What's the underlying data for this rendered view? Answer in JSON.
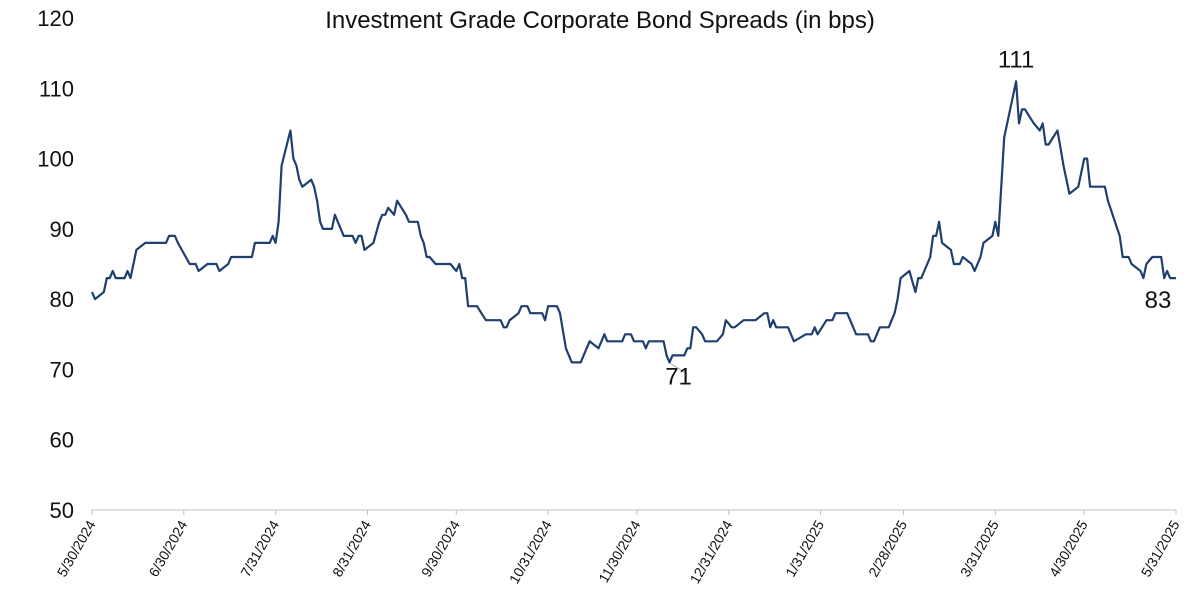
{
  "chart_data": {
    "type": "line",
    "title": "Investment Grade Corporate Bond Spreads (in bps)",
    "xlabel": "",
    "ylabel": "",
    "ylim": [
      50,
      120
    ],
    "yticks": [
      50,
      60,
      70,
      80,
      90,
      100,
      110,
      120
    ],
    "xlim": [
      "2024-05-30",
      "2025-05-31"
    ],
    "xtick_labels": [
      "5/30/2024",
      "6/30/2024",
      "7/31/2024",
      "8/31/2024",
      "9/30/2024",
      "10/31/2024",
      "11/30/2024",
      "12/31/2024",
      "1/31/2025",
      "2/28/2025",
      "3/31/2025",
      "4/30/2025",
      "5/31/2025"
    ],
    "xtick_dates": [
      "2024-05-30",
      "2024-06-30",
      "2024-07-31",
      "2024-08-31",
      "2024-09-30",
      "2024-10-31",
      "2024-11-30",
      "2024-12-31",
      "2025-01-31",
      "2025-02-28",
      "2025-03-31",
      "2025-04-30",
      "2025-05-31"
    ],
    "grid": false,
    "legend": "none",
    "line_color": "#1f3f6e",
    "series": [
      {
        "points": [
          [
            "2024-05-30",
            81
          ],
          [
            "2024-05-31",
            80
          ],
          [
            "2024-06-03",
            81
          ],
          [
            "2024-06-04",
            83
          ],
          [
            "2024-06-05",
            83
          ],
          [
            "2024-06-06",
            84
          ],
          [
            "2024-06-07",
            83
          ],
          [
            "2024-06-10",
            83
          ],
          [
            "2024-06-11",
            84
          ],
          [
            "2024-06-12",
            83
          ],
          [
            "2024-06-14",
            87
          ],
          [
            "2024-06-17",
            88
          ],
          [
            "2024-06-24",
            88
          ],
          [
            "2024-06-25",
            89
          ],
          [
            "2024-06-27",
            89
          ],
          [
            "2024-06-28",
            88
          ],
          [
            "2024-07-02",
            85
          ],
          [
            "2024-07-04",
            85
          ],
          [
            "2024-07-05",
            84
          ],
          [
            "2024-07-08",
            85
          ],
          [
            "2024-07-11",
            85
          ],
          [
            "2024-07-12",
            84
          ],
          [
            "2024-07-15",
            85
          ],
          [
            "2024-07-16",
            86
          ],
          [
            "2024-07-23",
            86
          ],
          [
            "2024-07-24",
            88
          ],
          [
            "2024-07-29",
            88
          ],
          [
            "2024-07-30",
            89
          ],
          [
            "2024-07-31",
            88
          ],
          [
            "2024-08-01",
            91
          ],
          [
            "2024-08-02",
            99
          ],
          [
            "2024-08-05",
            104
          ],
          [
            "2024-08-06",
            100
          ],
          [
            "2024-08-07",
            99
          ],
          [
            "2024-08-08",
            97
          ],
          [
            "2024-08-09",
            96
          ],
          [
            "2024-08-12",
            97
          ],
          [
            "2024-08-13",
            96
          ],
          [
            "2024-08-14",
            94
          ],
          [
            "2024-08-15",
            91
          ],
          [
            "2024-08-16",
            90
          ],
          [
            "2024-08-19",
            90
          ],
          [
            "2024-08-20",
            92
          ],
          [
            "2024-08-23",
            89
          ],
          [
            "2024-08-26",
            89
          ],
          [
            "2024-08-27",
            88
          ],
          [
            "2024-08-28",
            89
          ],
          [
            "2024-08-29",
            89
          ],
          [
            "2024-08-30",
            87
          ],
          [
            "2024-09-02",
            88
          ],
          [
            "2024-09-04",
            91
          ],
          [
            "2024-09-05",
            92
          ],
          [
            "2024-09-06",
            92
          ],
          [
            "2024-09-07",
            93
          ],
          [
            "2024-09-09",
            92
          ],
          [
            "2024-09-10",
            94
          ],
          [
            "2024-09-13",
            92
          ],
          [
            "2024-09-14",
            91
          ],
          [
            "2024-09-17",
            91
          ],
          [
            "2024-09-18",
            89
          ],
          [
            "2024-09-19",
            88
          ],
          [
            "2024-09-20",
            86
          ],
          [
            "2024-09-21",
            86
          ],
          [
            "2024-09-23",
            85
          ],
          [
            "2024-09-28",
            85
          ],
          [
            "2024-09-30",
            84
          ],
          [
            "2024-10-01",
            85
          ],
          [
            "2024-10-02",
            83
          ],
          [
            "2024-10-03",
            83
          ],
          [
            "2024-10-04",
            79
          ],
          [
            "2024-10-07",
            79
          ],
          [
            "2024-10-10",
            77
          ],
          [
            "2024-10-15",
            77
          ],
          [
            "2024-10-16",
            76
          ],
          [
            "2024-10-17",
            76
          ],
          [
            "2024-10-18",
            77
          ],
          [
            "2024-10-21",
            78
          ],
          [
            "2024-10-22",
            79
          ],
          [
            "2024-10-24",
            79
          ],
          [
            "2024-10-25",
            78
          ],
          [
            "2024-10-29",
            78
          ],
          [
            "2024-10-30",
            77
          ],
          [
            "2024-10-31",
            79
          ],
          [
            "2024-11-03",
            79
          ],
          [
            "2024-11-04",
            78
          ],
          [
            "2024-11-06",
            73
          ],
          [
            "2024-11-08",
            71
          ],
          [
            "2024-11-11",
            71
          ],
          [
            "2024-11-14",
            74
          ],
          [
            "2024-11-17",
            73
          ],
          [
            "2024-11-19",
            75
          ],
          [
            "2024-11-20",
            74
          ],
          [
            "2024-11-25",
            74
          ],
          [
            "2024-11-26",
            75
          ],
          [
            "2024-11-28",
            75
          ],
          [
            "2024-11-29",
            74
          ],
          [
            "2024-12-02",
            74
          ],
          [
            "2024-12-03",
            73
          ],
          [
            "2024-12-04",
            74
          ],
          [
            "2024-12-09",
            74
          ],
          [
            "2024-12-10",
            72
          ],
          [
            "2024-12-11",
            71
          ],
          [
            "2024-12-12",
            72
          ],
          [
            "2024-12-16",
            72
          ],
          [
            "2024-12-17",
            73
          ],
          [
            "2024-12-18",
            73
          ],
          [
            "2024-12-19",
            76
          ],
          [
            "2024-12-20",
            76
          ],
          [
            "2024-12-22",
            75
          ],
          [
            "2024-12-23",
            74
          ],
          [
            "2024-12-27",
            74
          ],
          [
            "2024-12-29",
            75
          ],
          [
            "2024-12-30",
            77
          ],
          [
            "2025-01-01",
            76
          ],
          [
            "2025-01-02",
            76
          ],
          [
            "2025-01-05",
            77
          ],
          [
            "2025-01-09",
            77
          ],
          [
            "2025-01-12",
            78
          ],
          [
            "2025-01-13",
            78
          ],
          [
            "2025-01-14",
            76
          ],
          [
            "2025-01-15",
            77
          ],
          [
            "2025-01-16",
            76
          ],
          [
            "2025-01-20",
            76
          ],
          [
            "2025-01-22",
            74
          ],
          [
            "2025-01-26",
            75
          ],
          [
            "2025-01-28",
            75
          ],
          [
            "2025-01-29",
            76
          ],
          [
            "2025-01-30",
            75
          ],
          [
            "2025-02-02",
            77
          ],
          [
            "2025-02-04",
            77
          ],
          [
            "2025-02-05",
            78
          ],
          [
            "2025-02-09",
            78
          ],
          [
            "2025-02-11",
            76
          ],
          [
            "2025-02-12",
            75
          ],
          [
            "2025-02-16",
            75
          ],
          [
            "2025-02-17",
            74
          ],
          [
            "2025-02-18",
            74
          ],
          [
            "2025-02-20",
            76
          ],
          [
            "2025-02-23",
            76
          ],
          [
            "2025-02-25",
            78
          ],
          [
            "2025-02-26",
            80
          ],
          [
            "2025-02-27",
            83
          ],
          [
            "2025-03-02",
            84
          ],
          [
            "2025-03-04",
            81
          ],
          [
            "2025-03-05",
            83
          ],
          [
            "2025-03-06",
            83
          ],
          [
            "2025-03-09",
            86
          ],
          [
            "2025-03-10",
            89
          ],
          [
            "2025-03-11",
            89
          ],
          [
            "2025-03-12",
            91
          ],
          [
            "2025-03-13",
            88
          ],
          [
            "2025-03-16",
            87
          ],
          [
            "2025-03-17",
            85
          ],
          [
            "2025-03-19",
            85
          ],
          [
            "2025-03-20",
            86
          ],
          [
            "2025-03-23",
            85
          ],
          [
            "2025-03-24",
            84
          ],
          [
            "2025-03-26",
            86
          ],
          [
            "2025-03-27",
            88
          ],
          [
            "2025-03-30",
            89
          ],
          [
            "2025-03-31",
            91
          ],
          [
            "2025-04-01",
            89
          ],
          [
            "2025-04-03",
            103
          ],
          [
            "2025-04-07",
            111
          ],
          [
            "2025-04-08",
            105
          ],
          [
            "2025-04-09",
            107
          ],
          [
            "2025-04-10",
            107
          ],
          [
            "2025-04-13",
            105
          ],
          [
            "2025-04-15",
            104
          ],
          [
            "2025-04-16",
            105
          ],
          [
            "2025-04-17",
            102
          ],
          [
            "2025-04-18",
            102
          ],
          [
            "2025-04-21",
            104
          ],
          [
            "2025-04-23",
            99
          ],
          [
            "2025-04-25",
            95
          ],
          [
            "2025-04-28",
            96
          ],
          [
            "2025-04-30",
            100
          ],
          [
            "2025-05-01",
            100
          ],
          [
            "2025-05-02",
            96
          ],
          [
            "2025-05-07",
            96
          ],
          [
            "2025-05-08",
            94
          ],
          [
            "2025-05-12",
            89
          ],
          [
            "2025-05-13",
            86
          ],
          [
            "2025-05-15",
            86
          ],
          [
            "2025-05-16",
            85
          ],
          [
            "2025-05-19",
            84
          ],
          [
            "2025-05-20",
            83
          ],
          [
            "2025-05-21",
            85
          ],
          [
            "2025-05-23",
            86
          ],
          [
            "2025-05-26",
            86
          ],
          [
            "2025-05-27",
            83
          ],
          [
            "2025-05-28",
            84
          ],
          [
            "2025-05-29",
            83
          ],
          [
            "2025-05-31",
            83
          ]
        ]
      }
    ],
    "annotations": [
      {
        "text": "111",
        "date": "2025-04-07",
        "value": 111,
        "position": "above"
      },
      {
        "text": "71",
        "date": "2024-12-11",
        "value": 71,
        "position": "below-right",
        "leader": true
      },
      {
        "text": "83",
        "date": "2025-05-31",
        "value": 83,
        "position": "below"
      }
    ]
  }
}
